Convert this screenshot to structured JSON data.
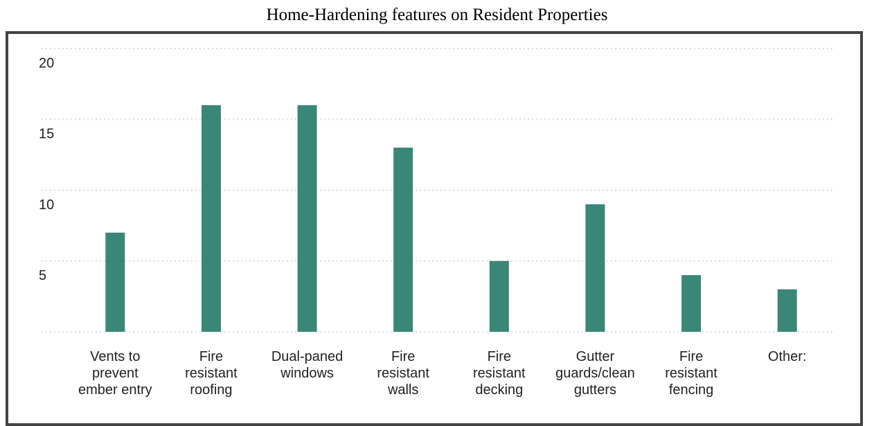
{
  "chart_data": {
    "type": "bar",
    "title": "Home-Hardening features on Resident Properties",
    "categories": [
      "Vents to\nprevent\nember entry",
      "Fire\nresistant\nroofing",
      "Dual-paned\nwindows",
      "Fire\nresistant\nwalls",
      "Fire\nresistant\ndecking",
      "Gutter\nguards/clean\ngutters",
      "Fire\nresistant\nfencing",
      "Other:"
    ],
    "values": [
      7,
      16,
      16,
      13,
      5,
      9,
      4,
      3
    ],
    "color": "#3a8778",
    "ylim": [
      0,
      20
    ],
    "yticks": [
      5,
      10,
      15,
      20
    ],
    "grid": true
  }
}
